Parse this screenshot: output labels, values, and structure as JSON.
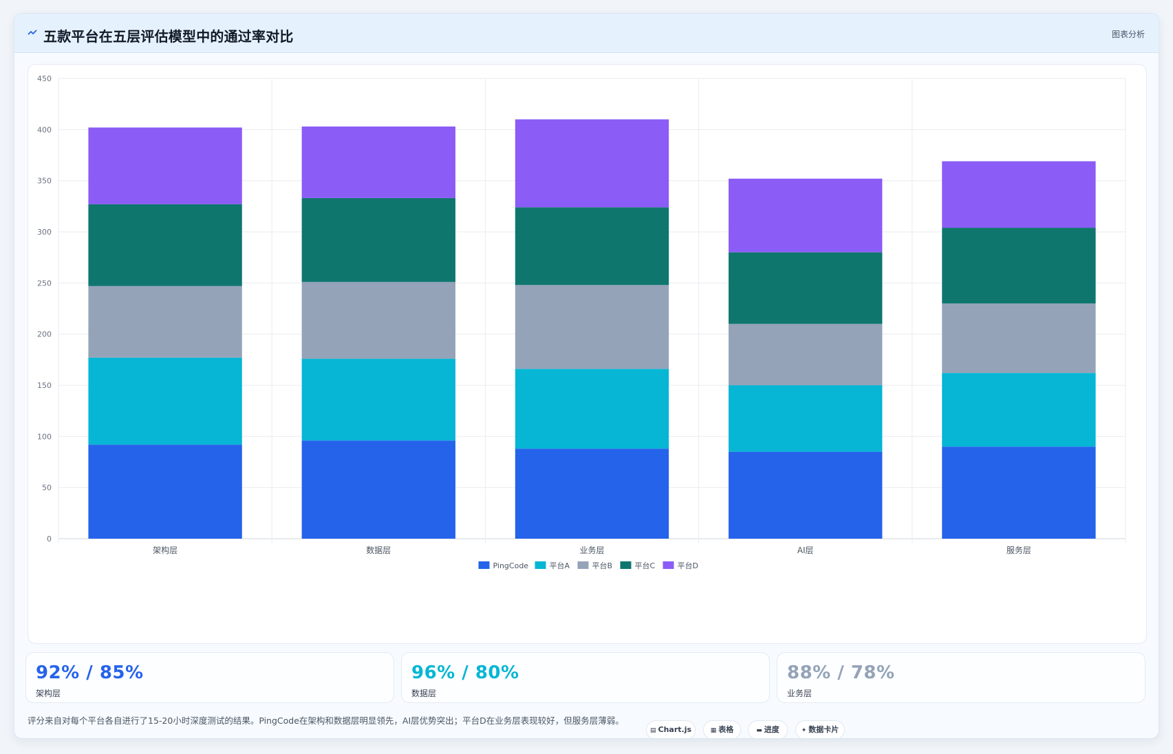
{
  "header": {
    "title": "五款平台在五层评估模型中的通过率对比",
    "tag": "图表分析"
  },
  "chart_data": {
    "type": "bar",
    "stacked": true,
    "categories": [
      "架构层",
      "数据层",
      "业务层",
      "AI层",
      "服务层"
    ],
    "ylim": [
      0,
      450
    ],
    "yticks": [
      0,
      50,
      100,
      150,
      200,
      250,
      300,
      350,
      400,
      450
    ],
    "grid": true,
    "legend_position": "bottom",
    "series": [
      {
        "name": "PingCode",
        "color": "#2563eb",
        "values": [
          92,
          96,
          88,
          85,
          90
        ]
      },
      {
        "name": "平台A",
        "color": "#06b6d4",
        "values": [
          85,
          80,
          78,
          65,
          72
        ]
      },
      {
        "name": "平台B",
        "color": "#94a3b8",
        "values": [
          70,
          75,
          82,
          60,
          68
        ]
      },
      {
        "name": "平台C",
        "color": "#0f766e",
        "values": [
          80,
          82,
          76,
          70,
          74
        ]
      },
      {
        "name": "平台D",
        "color": "#8b5cf6",
        "values": [
          75,
          70,
          86,
          72,
          65
        ]
      }
    ]
  },
  "stats": [
    {
      "value": "92% / 85%",
      "label": "架构层",
      "color": "#2563eb"
    },
    {
      "value": "96% / 80%",
      "label": "数据层",
      "color": "#06b6d4"
    },
    {
      "value": "88% / 78%",
      "label": "业务层",
      "color": "#94a3b8"
    }
  ],
  "footnote": "评分来自对每个平台各自进行了15-20小时深度测试的结果。PingCode在架构和数据层明显领先，AI层优势突出；平台D在业务层表现较好，但服务层薄弱。",
  "badges": [
    {
      "icon": "chart-icon",
      "glyph": "▤",
      "label": "Chart.js"
    },
    {
      "icon": "table-icon",
      "glyph": "▦",
      "label": "表格"
    },
    {
      "icon": "progress-icon",
      "glyph": "▬",
      "label": "进度"
    },
    {
      "icon": "card-icon",
      "glyph": "✦",
      "label": "数据卡片"
    }
  ]
}
